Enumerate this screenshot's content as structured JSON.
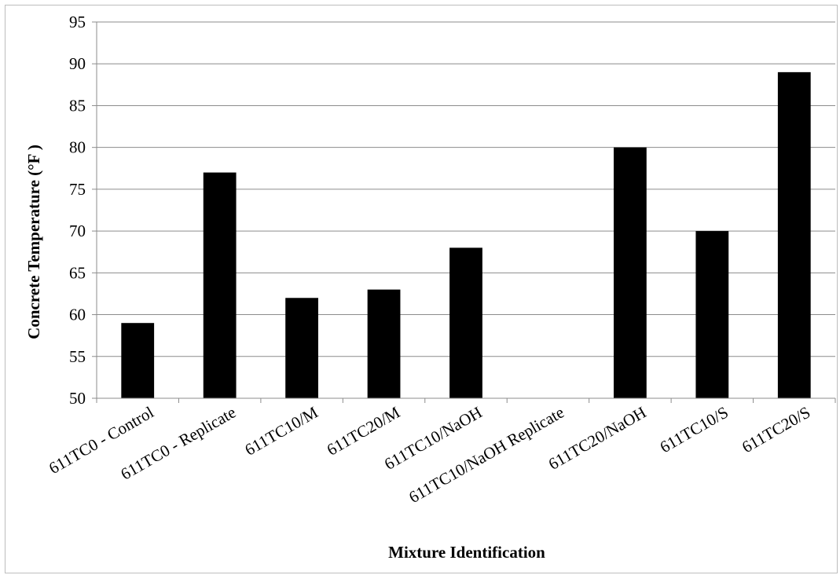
{
  "chart_data": {
    "type": "bar",
    "title": "",
    "xlabel": "Mixture Identification",
    "ylabel": "Concrete Temperature (°F )",
    "ylim": [
      50,
      95
    ],
    "yticks": [
      50,
      55,
      60,
      65,
      70,
      75,
      80,
      85,
      90,
      95
    ],
    "grid": true,
    "legend": "none",
    "bar_color": "#000000",
    "categories": [
      "611TC0 - Control",
      "611TC0 - Replicate",
      "611TC10/M",
      "611TC20/M",
      "611TC10/NaOH",
      "611TC10/NaOH Replicate",
      "611TC20/NaOH",
      "611TC10/S",
      "611TC20/S"
    ],
    "values": [
      59,
      77,
      62,
      63,
      68,
      null,
      80,
      70,
      89
    ]
  }
}
